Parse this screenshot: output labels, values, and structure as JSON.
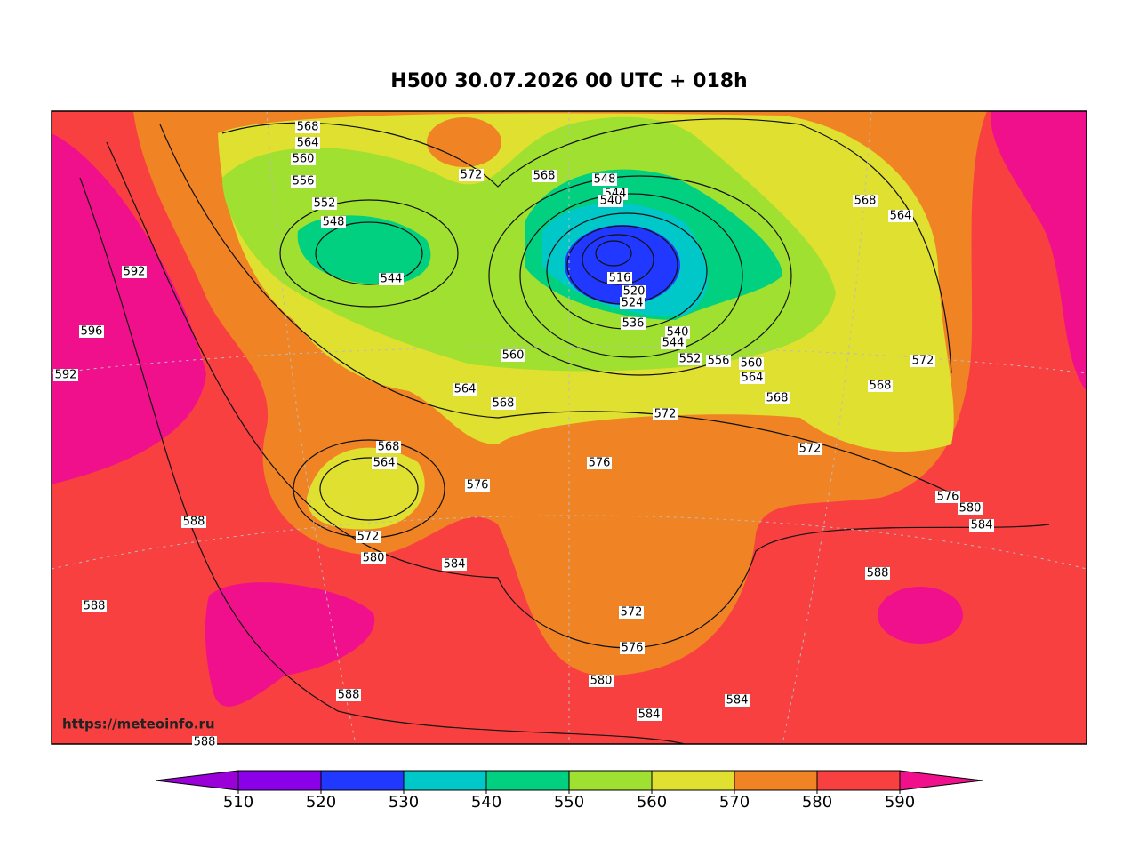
{
  "title": "H500  30.07.2026 00 UTC + 018h",
  "watermark": "https://meteoinfo.ru",
  "colorbar": {
    "ticks": [
      510,
      520,
      530,
      540,
      550,
      560,
      570,
      580,
      590
    ],
    "colors": [
      "#9a00d8",
      "#8a00e8",
      "#2038ff",
      "#00c8c8",
      "#00d080",
      "#a0e030",
      "#e0e030",
      "#f08424",
      "#f84040",
      "#f0108c"
    ]
  },
  "contour_labels": [
    568,
    564,
    560,
    556,
    552,
    548,
    544,
    572,
    568,
    548,
    544,
    540,
    516,
    520,
    524,
    536,
    540,
    544,
    552,
    556,
    560,
    564,
    568,
    568,
    564,
    572,
    568,
    572,
    576,
    580,
    584,
    588,
    560,
    564,
    568,
    572,
    576,
    576,
    568,
    564,
    572,
    580,
    584,
    592,
    596,
    592,
    588,
    588,
    572,
    576,
    580,
    584,
    584,
    588,
    588
  ]
}
